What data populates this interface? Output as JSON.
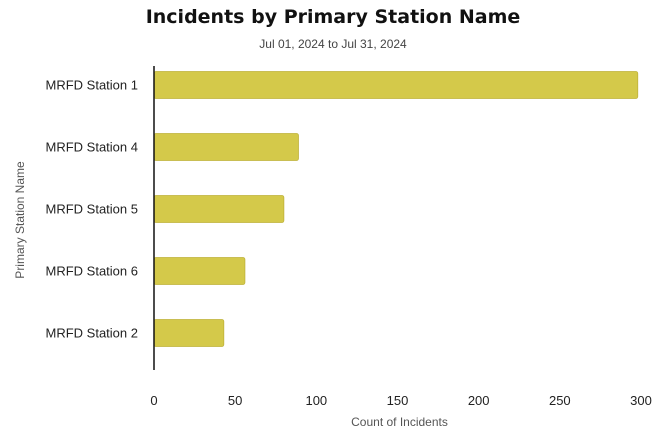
{
  "chart_data": {
    "type": "bar",
    "orientation": "horizontal",
    "title": "Incidents by Primary Station Name",
    "subtitle": "Jul 01, 2024 to Jul 31, 2024",
    "xlabel": "Count of Incidents",
    "ylabel": "Primary Station Name",
    "categories": [
      "MRFD Station 1",
      "MRFD Station 4",
      "MRFD Station 5",
      "MRFD Station 6",
      "MRFD Station 2"
    ],
    "values": [
      298,
      89,
      80,
      56,
      43
    ],
    "xlim": [
      0,
      300
    ],
    "xticks": [
      0,
      50,
      100,
      150,
      200,
      250,
      300
    ],
    "grid": false,
    "bar_color": "#d4c94a",
    "bar_stroke": "#bfb23a"
  }
}
